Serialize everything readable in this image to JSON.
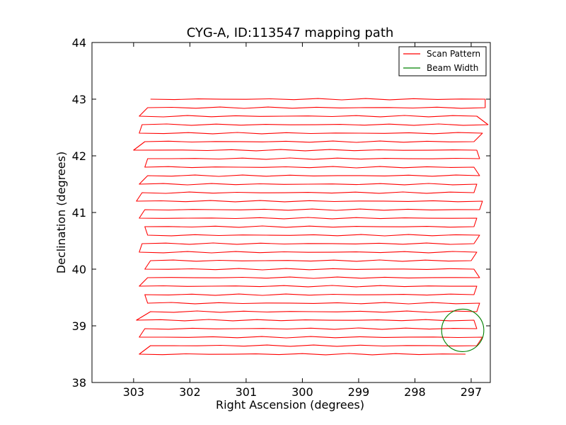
{
  "chart_data": {
    "type": "line",
    "title": "CYG-A, ID:113547 mapping path",
    "xlabel": "Right Ascension (degrees)",
    "ylabel": "Declination (degrees)",
    "xlim": [
      303.74,
      296.66
    ],
    "ylim": [
      38,
      44
    ],
    "x_ticks": [
      303,
      302,
      301,
      300,
      299,
      298,
      297
    ],
    "y_ticks": [
      38,
      39,
      40,
      41,
      42,
      43,
      44
    ],
    "grid": false,
    "legend": {
      "placement": "top-right",
      "entries": [
        {
          "name": "Scan Pattern",
          "color": "#ff0000"
        },
        {
          "name": "Beam Width",
          "color": "#008000"
        }
      ]
    },
    "scan_rows": [
      {
        "dec": 38.5,
        "ra_min": 297.1,
        "ra_max": 302.9
      },
      {
        "dec": 38.65,
        "ra_min": 296.9,
        "ra_max": 302.7
      },
      {
        "dec": 38.8,
        "ra_min": 296.8,
        "ra_max": 302.9
      },
      {
        "dec": 38.95,
        "ra_min": 296.9,
        "ra_max": 302.8
      },
      {
        "dec": 39.1,
        "ra_min": 296.95,
        "ra_max": 302.95
      },
      {
        "dec": 39.25,
        "ra_min": 296.9,
        "ra_max": 302.7
      },
      {
        "dec": 39.4,
        "ra_min": 296.85,
        "ra_max": 302.75
      },
      {
        "dec": 39.55,
        "ra_min": 296.95,
        "ra_max": 302.8
      },
      {
        "dec": 39.7,
        "ra_min": 296.9,
        "ra_max": 302.9
      },
      {
        "dec": 39.85,
        "ra_min": 296.85,
        "ra_max": 302.75
      },
      {
        "dec": 40.0,
        "ra_min": 296.95,
        "ra_max": 302.8
      },
      {
        "dec": 40.15,
        "ra_min": 297.0,
        "ra_max": 302.7
      },
      {
        "dec": 40.3,
        "ra_min": 296.9,
        "ra_max": 302.9
      },
      {
        "dec": 40.45,
        "ra_min": 296.95,
        "ra_max": 302.85
      },
      {
        "dec": 40.6,
        "ra_min": 296.85,
        "ra_max": 302.75
      },
      {
        "dec": 40.75,
        "ra_min": 296.95,
        "ra_max": 302.8
      },
      {
        "dec": 40.9,
        "ra_min": 296.9,
        "ra_max": 302.9
      },
      {
        "dec": 41.05,
        "ra_min": 296.85,
        "ra_max": 302.8
      },
      {
        "dec": 41.2,
        "ra_min": 296.8,
        "ra_max": 302.95
      },
      {
        "dec": 41.35,
        "ra_min": 296.95,
        "ra_max": 302.85
      },
      {
        "dec": 41.5,
        "ra_min": 296.9,
        "ra_max": 302.9
      },
      {
        "dec": 41.65,
        "ra_min": 296.85,
        "ra_max": 302.75
      },
      {
        "dec": 41.8,
        "ra_min": 296.95,
        "ra_max": 302.8
      },
      {
        "dec": 41.95,
        "ra_min": 296.85,
        "ra_max": 302.75
      },
      {
        "dec": 42.1,
        "ra_min": 296.9,
        "ra_max": 303.0
      },
      {
        "dec": 42.25,
        "ra_min": 296.95,
        "ra_max": 302.8
      },
      {
        "dec": 42.4,
        "ra_min": 296.8,
        "ra_max": 302.9
      },
      {
        "dec": 42.55,
        "ra_min": 296.7,
        "ra_max": 302.85
      },
      {
        "dec": 42.7,
        "ra_min": 296.9,
        "ra_max": 302.9
      },
      {
        "dec": 42.85,
        "ra_min": 296.75,
        "ra_max": 302.75
      },
      {
        "dec": 43.0,
        "ra_min": 296.75,
        "ra_max": 302.7
      }
    ],
    "beam": {
      "ra_center": 297.15,
      "dec_center": 38.92,
      "diameter_deg": 0.75
    }
  }
}
